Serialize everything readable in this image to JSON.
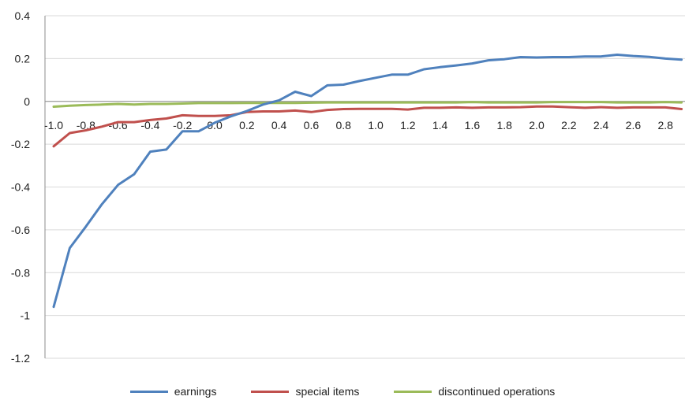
{
  "chart_data": {
    "type": "line",
    "title": "",
    "xlabel": "",
    "ylabel": "",
    "ylim": [
      -1.2,
      0.4
    ],
    "y_ticks": [
      "0.4",
      "0.2",
      "0",
      "-0.2",
      "-0.4",
      "-0.6",
      "-0.8",
      "-1",
      "-1.2"
    ],
    "x_ticks": [
      "-1.0",
      "-0.8",
      "-0.6",
      "-0.4",
      "-0.2",
      "0.0",
      "0.2",
      "0.4",
      "0.6",
      "0.8",
      "1.0",
      "1.2",
      "1.4",
      "1.6",
      "1.8",
      "2.0",
      "2.2",
      "2.4",
      "2.6",
      "2.8"
    ],
    "grid": "horizontal",
    "legend_position": "bottom",
    "x": [
      -1.0,
      -0.9,
      -0.8,
      -0.7,
      -0.6,
      -0.5,
      -0.4,
      -0.3,
      -0.2,
      -0.1,
      0.0,
      0.1,
      0.2,
      0.3,
      0.4,
      0.5,
      0.6,
      0.7,
      0.8,
      0.9,
      1.0,
      1.1,
      1.2,
      1.3,
      1.4,
      1.5,
      1.6,
      1.7,
      1.8,
      1.9,
      2.0,
      2.1,
      2.2,
      2.3,
      2.4,
      2.5,
      2.6,
      2.7,
      2.8,
      2.9
    ],
    "series": [
      {
        "name": "earnings",
        "color": "#4F81BD",
        "values": [
          -0.96,
          -0.685,
          -0.585,
          -0.48,
          -0.39,
          -0.34,
          -0.235,
          -0.225,
          -0.14,
          -0.14,
          -0.1,
          -0.07,
          -0.045,
          -0.015,
          0.005,
          0.045,
          0.025,
          0.075,
          0.078,
          0.095,
          0.11,
          0.125,
          0.125,
          0.15,
          0.16,
          0.168,
          0.177,
          0.192,
          0.197,
          0.207,
          0.205,
          0.207,
          0.207,
          0.21,
          0.21,
          0.218,
          0.212,
          0.208,
          0.2,
          0.195
        ]
      },
      {
        "name": "special items",
        "color": "#C0504D",
        "values": [
          -0.21,
          -0.148,
          -0.135,
          -0.118,
          -0.097,
          -0.097,
          -0.087,
          -0.08,
          -0.065,
          -0.068,
          -0.068,
          -0.065,
          -0.05,
          -0.047,
          -0.047,
          -0.043,
          -0.05,
          -0.04,
          -0.036,
          -0.035,
          -0.035,
          -0.035,
          -0.038,
          -0.03,
          -0.03,
          -0.028,
          -0.03,
          -0.028,
          -0.028,
          -0.027,
          -0.024,
          -0.024,
          -0.027,
          -0.03,
          -0.027,
          -0.03,
          -0.028,
          -0.028,
          -0.028,
          -0.036
        ]
      },
      {
        "name": "discontinued operations",
        "color": "#9BBB59",
        "values": [
          -0.025,
          -0.02,
          -0.017,
          -0.015,
          -0.012,
          -0.015,
          -0.012,
          -0.012,
          -0.01,
          -0.008,
          -0.008,
          -0.008,
          -0.007,
          -0.007,
          -0.007,
          -0.007,
          -0.006,
          -0.005,
          -0.005,
          -0.005,
          -0.005,
          -0.005,
          -0.005,
          -0.005,
          -0.005,
          -0.005,
          -0.003,
          -0.005,
          -0.005,
          -0.005,
          -0.005,
          -0.003,
          -0.003,
          -0.003,
          -0.003,
          -0.005,
          -0.005,
          -0.005,
          -0.003,
          -0.005
        ]
      }
    ]
  }
}
